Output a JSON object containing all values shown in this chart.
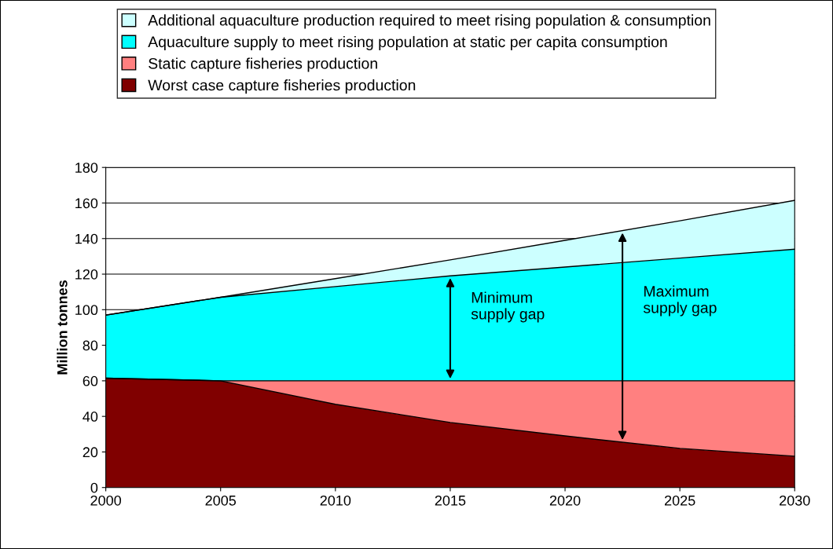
{
  "chart_data": {
    "type": "area",
    "stacked": true,
    "ylabel": "Million tonnes",
    "x": [
      2000,
      2005,
      2010,
      2015,
      2020,
      2025,
      2030
    ],
    "series": [
      {
        "name": "Worst case capture fisheries production",
        "color": "#800000",
        "values": [
          61.5,
          60,
          46.8,
          36.6,
          29,
          22,
          17.6
        ]
      },
      {
        "name": "Static capture fisheries production",
        "color": "#ff8080",
        "values": [
          0,
          0,
          13.2,
          23.4,
          31,
          38,
          42.4
        ]
      },
      {
        "name": "Aquaculture supply to meet rising population at static per capita consumption",
        "color": "#00ffff",
        "values": [
          35.5,
          47,
          53,
          59,
          64,
          69,
          74
        ]
      },
      {
        "name": "Additional aquaculture production required to meet rising population & consumption",
        "color": "#ccffff",
        "values": [
          0,
          0,
          4.5,
          9,
          15,
          21,
          27.5
        ]
      }
    ],
    "xlim": [
      2000,
      2030
    ],
    "xticks": [
      2000,
      2005,
      2010,
      2015,
      2020,
      2025,
      2030
    ],
    "ylim": [
      0,
      180
    ],
    "yticks": [
      0,
      20,
      40,
      60,
      80,
      100,
      120,
      140,
      160,
      180
    ],
    "grid": "y",
    "legend": "top",
    "annotations": [
      "Minimum\nsupply gap",
      "Maximum\nsupply gap"
    ]
  }
}
